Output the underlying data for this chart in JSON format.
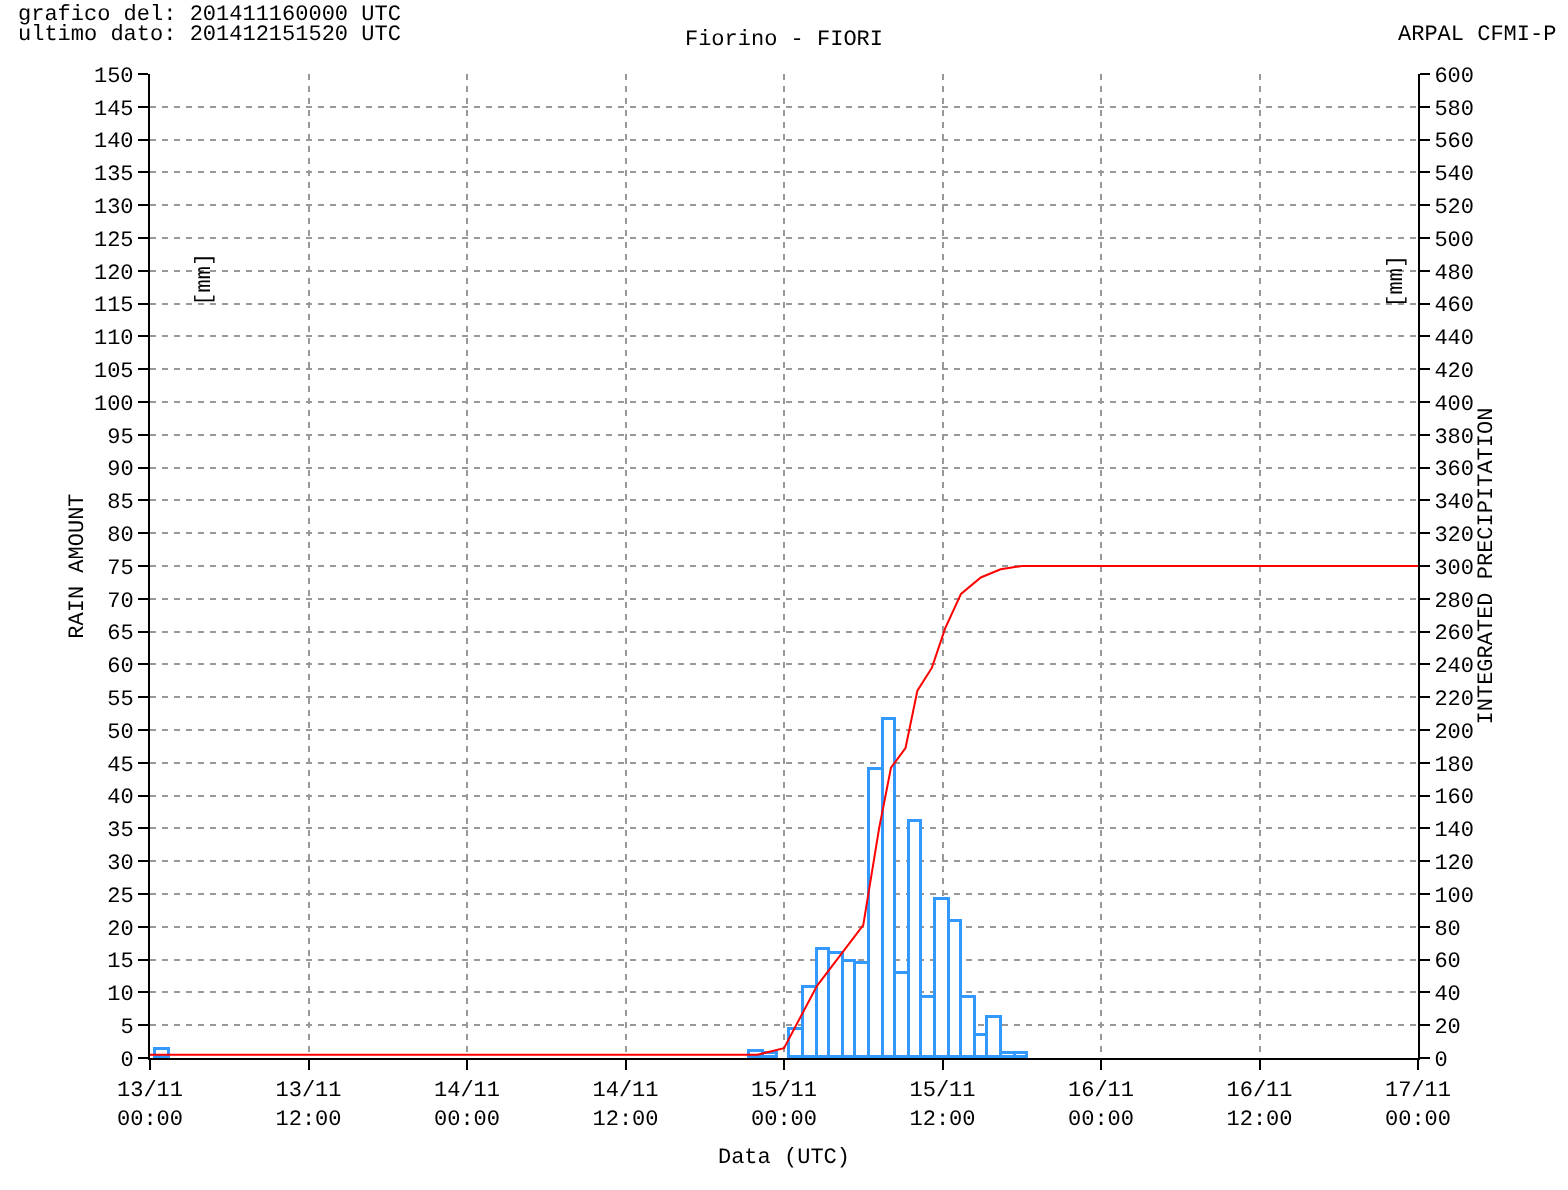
{
  "chart_data": {
    "type": "bar",
    "title": "Fiorino - FIORI",
    "annotations": [
      "grafico del: 201411160000 UTC",
      "ultimo dato: 201412151520 UTC",
      "ARPAL CFMI-P",
      "[mm]",
      "[mm]"
    ],
    "xlabel": "Data (UTC)",
    "ylabel": "RAIN AMOUNT",
    "y2label": "INTEGRATED PRECIPITATION",
    "xlim": [
      "2014-11-13T00:00",
      "2014-11-17T00:00"
    ],
    "xticks": [
      {
        "value": "2014-11-13T00:00",
        "label": "13/11\n00:00"
      },
      {
        "value": "2014-11-13T12:00",
        "label": "13/11\n12:00"
      },
      {
        "value": "2014-11-14T00:00",
        "label": "14/11\n00:00"
      },
      {
        "value": "2014-11-14T12:00",
        "label": "14/11\n12:00"
      },
      {
        "value": "2014-11-15T00:00",
        "label": "15/11\n00:00"
      },
      {
        "value": "2014-11-15T12:00",
        "label": "15/11\n12:00"
      },
      {
        "value": "2014-11-16T00:00",
        "label": "16/11\n00:00"
      },
      {
        "value": "2014-11-16T12:00",
        "label": "16/11\n12:00"
      },
      {
        "value": "2014-11-17T00:00",
        "label": "17/11\n00:00"
      }
    ],
    "ylim": [
      0,
      150
    ],
    "yticks": [
      0,
      5,
      10,
      15,
      20,
      25,
      30,
      35,
      40,
      45,
      50,
      55,
      60,
      65,
      70,
      75,
      80,
      85,
      90,
      95,
      100,
      105,
      110,
      115,
      120,
      125,
      130,
      135,
      140,
      145,
      150
    ],
    "y2lim": [
      0,
      600
    ],
    "y2ticks": [
      0,
      20,
      40,
      60,
      80,
      100,
      120,
      140,
      160,
      180,
      200,
      220,
      240,
      260,
      280,
      300,
      320,
      340,
      360,
      380,
      400,
      420,
      440,
      460,
      480,
      500,
      520,
      540,
      560,
      580,
      600
    ],
    "grid": true,
    "series": [
      {
        "color": "#3399ff",
        "x": [
          "2014-11-13T01:00",
          "2014-11-14T22:00",
          "2014-11-14T23:00",
          "2014-11-15T01:00",
          "2014-11-15T02:00",
          "2014-11-15T03:00",
          "2014-11-15T04:00",
          "2014-11-15T05:00",
          "2014-11-15T06:00",
          "2014-11-15T07:00",
          "2014-11-15T08:00",
          "2014-11-15T09:00",
          "2014-11-15T10:00",
          "2014-11-15T11:00",
          "2014-11-15T12:00",
          "2014-11-15T13:00",
          "2014-11-15T14:00",
          "2014-11-15T15:00",
          "2014-11-15T16:00",
          "2014-11-15T17:00",
          "2014-11-15T18:00"
        ],
        "values": [
          1.2,
          0.8,
          0.5,
          4.3,
          10.6,
          16.6,
          15.9,
          14.7,
          14.4,
          43.9,
          51.5,
          12.7,
          36.0,
          9.3,
          24.0,
          20.7,
          9.3,
          3.3,
          6.2,
          0.5,
          0.5
        ]
      },
      {
        "type": "line",
        "axis": "y2",
        "color": "#ff0000",
        "line_style": "solid",
        "marker": "none",
        "x": [
          "2014-11-13T00:00",
          "2014-11-14T22:00",
          "2014-11-15T00:00",
          "2014-11-15T02:30",
          "2014-11-15T06:00",
          "2014-11-15T07:12",
          "2014-11-15T08:06",
          "2014-11-15T09:12",
          "2014-11-15T10:06",
          "2014-11-15T11:12",
          "2014-11-15T12:12",
          "2014-11-15T13:24",
          "2014-11-15T14:54",
          "2014-11-15T16:24",
          "2014-11-15T18:00",
          "2014-11-17T00:00"
        ],
        "values": [
          2,
          2,
          6,
          44,
          81,
          140,
          177,
          189,
          224,
          238,
          262,
          283,
          293,
          298,
          300,
          300
        ]
      }
    ]
  }
}
